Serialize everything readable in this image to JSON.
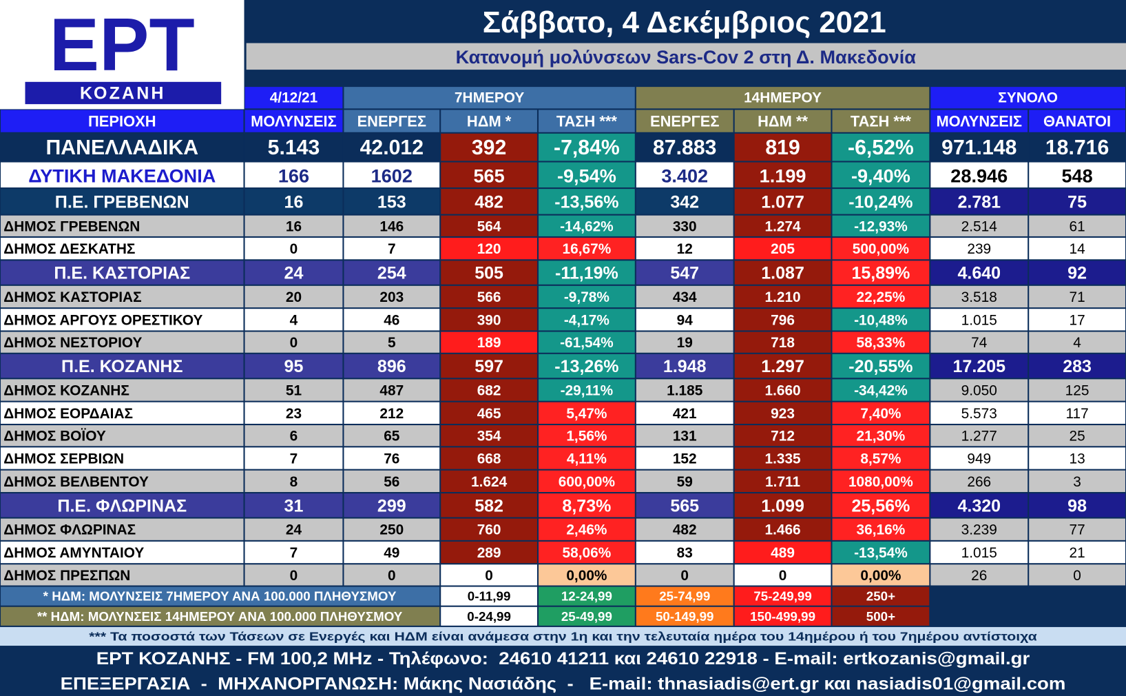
{
  "logo": {
    "name": "ΕΡΤ",
    "city": "ΚΟΖΑΝΗ"
  },
  "header": {
    "title": "Σάββατο, 4 Δεκέμβριος 2021",
    "subtitle": "Κατανομή μολύνσεων Sars-Cov 2 στη Δ. Μακεδονία"
  },
  "table": {
    "groups": [
      "4/12/21",
      "7ΗΜΕΡΟΥ",
      "14ΗΜΕΡΟΥ",
      "ΣΥΝΟΛΟ"
    ],
    "columns": [
      "ΠΕΡΙΟΧΗ",
      "ΜΟΛΥΝΣΕΙΣ",
      "ΕΝΕΡΓΕΣ",
      "ΗΔΜ *",
      "ΤΑΣΗ ***",
      "ΕΝΕΡΓΕΣ",
      "ΗΔΜ **",
      "ΤΑΣΗ ***",
      "ΜΟΛΥΝΣΕΙΣ",
      "ΘΑΝΑΤΟΙ"
    ],
    "rows": [
      [
        "ΠΑΝΕΛΛΑΔΙΚΑ",
        "5.143",
        "42.012",
        "392",
        "-7,84%",
        "87.883",
        "819",
        "-6,52%",
        "971.148",
        "18.716"
      ],
      [
        "ΔΥΤΙΚΗ ΜΑΚΕΔΟΝΙΑ",
        "166",
        "1602",
        "565",
        "-9,54%",
        "3.402",
        "1.199",
        "-9,40%",
        "28.946",
        "548"
      ],
      [
        "Π.Ε. ΓΡΕΒΕΝΩΝ",
        "16",
        "153",
        "482",
        "-13,56%",
        "342",
        "1.077",
        "-10,24%",
        "2.781",
        "75"
      ],
      [
        "ΔΗΜΟΣ ΓΡΕΒΕΝΩΝ",
        "16",
        "146",
        "564",
        "-14,62%",
        "330",
        "1.274",
        "-12,93%",
        "2.514",
        "61"
      ],
      [
        "ΔΗΜΟΣ ΔΕΣΚΑΤΗΣ",
        "0",
        "7",
        "120",
        "16,67%",
        "12",
        "205",
        "500,00%",
        "239",
        "14"
      ],
      [
        "Π.Ε. ΚΑΣΤΟΡΙΑΣ",
        "24",
        "254",
        "505",
        "-11,19%",
        "547",
        "1.087",
        "15,89%",
        "4.640",
        "92"
      ],
      [
        "ΔΗΜΟΣ ΚΑΣΤΟΡΙΑΣ",
        "20",
        "203",
        "566",
        "-9,78%",
        "434",
        "1.210",
        "22,25%",
        "3.518",
        "71"
      ],
      [
        "ΔΗΜΟΣ ΑΡΓΟΥΣ ΟΡΕΣΤΙΚΟΥ",
        "4",
        "46",
        "390",
        "-4,17%",
        "94",
        "796",
        "-10,48%",
        "1.015",
        "17"
      ],
      [
        "ΔΗΜΟΣ ΝΕΣΤΟΡΙΟΥ",
        "0",
        "5",
        "189",
        "-61,54%",
        "19",
        "718",
        "58,33%",
        "74",
        "4"
      ],
      [
        "Π.Ε. ΚΟΖΑΝΗΣ",
        "95",
        "896",
        "597",
        "-13,26%",
        "1.948",
        "1.297",
        "-20,55%",
        "17.205",
        "283"
      ],
      [
        "ΔΗΜΟΣ ΚΟΖΑΝΗΣ",
        "51",
        "487",
        "682",
        "-29,11%",
        "1.185",
        "1.660",
        "-34,42%",
        "9.050",
        "125"
      ],
      [
        "ΔΗΜΟΣ ΕΟΡΔΑΙΑΣ",
        "23",
        "212",
        "465",
        "5,47%",
        "421",
        "923",
        "7,40%",
        "5.573",
        "117"
      ],
      [
        "ΔΗΜΟΣ ΒΟΪΟΥ",
        "6",
        "65",
        "354",
        "1,56%",
        "131",
        "712",
        "21,30%",
        "1.277",
        "25"
      ],
      [
        "ΔΗΜΟΣ ΣΕΡΒΙΩΝ",
        "7",
        "76",
        "668",
        "4,11%",
        "152",
        "1.335",
        "8,57%",
        "949",
        "13"
      ],
      [
        "ΔΗΜΟΣ ΒΕΛΒΕΝΤΟΥ",
        "8",
        "56",
        "1.624",
        "600,00%",
        "59",
        "1.711",
        "1080,00%",
        "266",
        "3"
      ],
      [
        "Π.Ε. ΦΛΩΡΙΝΑΣ",
        "31",
        "299",
        "582",
        "8,73%",
        "565",
        "1.099",
        "25,56%",
        "4.320",
        "98"
      ],
      [
        "ΔΗΜΟΣ ΦΛΩΡΙΝΑΣ",
        "24",
        "250",
        "760",
        "2,46%",
        "482",
        "1.466",
        "36,16%",
        "3.239",
        "77"
      ],
      [
        "ΔΗΜΟΣ ΑΜΥΝΤΑΙΟΥ",
        "7",
        "49",
        "289",
        "58,06%",
        "83",
        "489",
        "-13,54%",
        "1.015",
        "21"
      ],
      [
        "ΔΗΜΟΣ ΠΡΕΣΠΩΝ",
        "0",
        "0",
        "0",
        "0,00%",
        "0",
        "0",
        "0,00%",
        "26",
        "0"
      ]
    ]
  },
  "legend": [
    {
      "label": "* ΗΔΜ: ΜΟΛΥΝΣΕΙΣ 7ΗΜΕΡΟΥ ΑΝΑ 100.000 ΠΛΗΘΥΣΜΟΥ",
      "items": [
        "0-11,99",
        "12-24,99",
        "25-74,99",
        "75-249,99",
        "250+"
      ]
    },
    {
      "label": "** ΗΔΜ: ΜΟΛΥΝΣΕΙΣ 14ΗΜΕΡΟΥ ΑΝΑ 100.000 ΠΛΗΘΥΣΜΟΥ",
      "items": [
        "0-24,99",
        "25-49,99",
        "50-149,99",
        "150-499,99",
        "500+"
      ]
    }
  ],
  "legend_colors": [
    "#ffffff",
    "#1f9e62",
    "#ff7a1c",
    "#ff1c1c",
    "#951a0c"
  ],
  "trend_colors": {
    "negative": "#14978a",
    "positive": "#ff2222",
    "zero": "#fcc898"
  },
  "note": "*** Τα ποσοστά των Τάσεων σε Ενεργές και ΗΔΜ είναι ανάμεσα στην 1η και την τελευταία ημέρα του 14ημέρου ή του 7ημέρου αντίστοιχα",
  "footer": [
    "ΕΡΤ ΚΟΖΑΝΗΣ - FM 100,2 MHz - Τηλέφωνο:  24610 41211 και 24610 22918 - E-mail: ertkozanis@gmail.gr",
    "ΕΠΕΞΕΡΓΑΣΙΑ  -  ΜΗΧΑΝΟΡΓΑΝΩΣΗ: Μάκης Νασιάδης  -   E-mail: thnasiadis@ert.gr και nasiadis01@gmail.com"
  ]
}
